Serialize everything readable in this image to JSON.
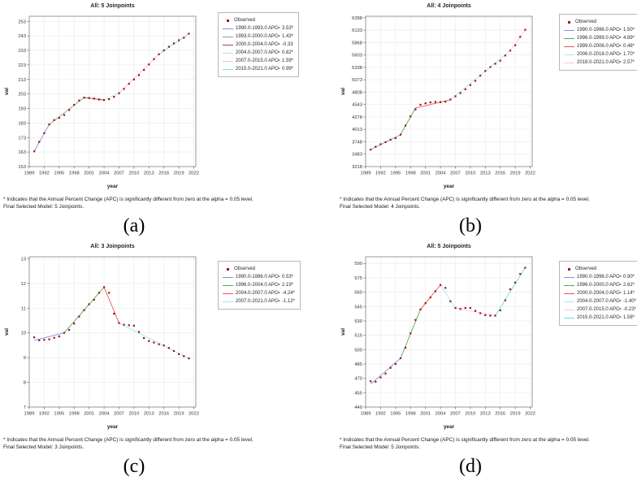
{
  "figure": {
    "background": "#ffffff",
    "grid_color": "#ececec",
    "border_color": "#8f8f8f"
  },
  "chart_data": [
    {
      "type": "line",
      "panel_label": "(a)",
      "title": "All: 5 Joinpoints",
      "xlabel": "year",
      "ylabel": "val",
      "legend_position": "top-right-outside",
      "grid": true,
      "observed_label": "Observed",
      "observed_color": "#9a1515",
      "x_ticks": [
        1989,
        1992,
        1995,
        1998,
        2001,
        2004,
        2007,
        2010,
        2013,
        2016,
        2019,
        2022
      ],
      "y_ticks": [
        153,
        163,
        173,
        183,
        193,
        203,
        213,
        223,
        233,
        243,
        253
      ],
      "xlim": [
        1989,
        2022.4
      ],
      "ylim": [
        153,
        256.5
      ],
      "x": [
        1990,
        1991,
        1992,
        1993,
        1994,
        1995,
        1996,
        1997,
        1998,
        1999,
        2000,
        2001,
        2002,
        2003,
        2004,
        2005,
        2006,
        2007,
        2008,
        2009,
        2010,
        2011,
        2012,
        2013,
        2014,
        2015,
        2016,
        2017,
        2018,
        2019,
        2020,
        2021
      ],
      "values": [
        163.5,
        170,
        176,
        182,
        185,
        186.5,
        188.5,
        192,
        195.5,
        198.5,
        200.5,
        200.2,
        199.8,
        199.2,
        198.8,
        199.4,
        201,
        203.5,
        206.5,
        210,
        213,
        216,
        219.5,
        223.3,
        227,
        230.3,
        233,
        235.5,
        237.8,
        240,
        241.7,
        244.5
      ],
      "segments": [
        {
          "range": "1990.0-1993.0",
          "apc": "3.53*",
          "from": 1990,
          "to": 1993,
          "color": "#8a8ae8"
        },
        {
          "range": "1993.0-2000.0",
          "apc": "1.43*",
          "from": 1993,
          "to": 2000,
          "color": "#8fa88f"
        },
        {
          "range": "2000.0-2004.0",
          "apc": "-0.33",
          "from": 2000,
          "to": 2004,
          "color": "#a34b4b"
        },
        {
          "range": "2004.0-2007.0",
          "apc": "0.82*",
          "from": 2004,
          "to": 2007,
          "color": "#bce3c8"
        },
        {
          "range": "2007.0-2015.0",
          "apc": "1.59*",
          "from": 2007,
          "to": 2015,
          "color": "#f2bcdc"
        },
        {
          "range": "2015.0-2021.0",
          "apc": "0.99*",
          "from": 2015,
          "to": 2021,
          "color": "#7fe2e8"
        }
      ],
      "footnote1": "* Indicates that the Annual Percent Change (APC) is significantly different from zero at the alpha = 0.05 level.",
      "footnote2": "Final Selected Model: 5 Joinpoints."
    },
    {
      "type": "line",
      "panel_label": "(b)",
      "title": "All: 4 Joinpoints",
      "xlabel": "year",
      "ylabel": "val",
      "legend_position": "top-right-outside",
      "grid": true,
      "observed_label": "Observed",
      "observed_color": "#9a1515",
      "x_ticks": [
        1989,
        1992,
        1995,
        1998,
        2001,
        2004,
        2007,
        2010,
        2013,
        2016,
        2019,
        2022
      ],
      "y_ticks": [
        3218,
        3483,
        3748,
        4013,
        4278,
        4543,
        4808,
        5073,
        5338,
        5603,
        5868,
        6133,
        6398
      ],
      "xlim": [
        1989,
        2022.4
      ],
      "ylim": [
        3218,
        6430
      ],
      "x": [
        1990,
        1991,
        1992,
        1993,
        1994,
        1995,
        1996,
        1997,
        1998,
        1999,
        2000,
        2001,
        2002,
        2003,
        2004,
        2005,
        2006,
        2007,
        2008,
        2009,
        2010,
        2011,
        2012,
        2013,
        2014,
        2015,
        2016,
        2017,
        2018,
        2019,
        2020,
        2021
      ],
      "values": [
        3580,
        3640,
        3695,
        3740,
        3790,
        3825,
        3900,
        4095,
        4290,
        4440,
        4540,
        4570,
        4590,
        4600,
        4595,
        4605,
        4650,
        4720,
        4790,
        4870,
        4960,
        5050,
        5160,
        5260,
        5345,
        5415,
        5480,
        5590,
        5695,
        5810,
        5990,
        6140
      ],
      "segments": [
        {
          "range": "1990.0-1996.0",
          "apc": "1.50*",
          "from": 1990,
          "to": 1996,
          "color": "#8a8ae8"
        },
        {
          "range": "1996.0-1999.0",
          "apc": "4.89*",
          "from": 1996,
          "to": 1999,
          "v2": 4470,
          "color": "#57a657"
        },
        {
          "range": "1999.0-2006.0",
          "apc": "0.46*",
          "from": 1999,
          "to": 2006,
          "v1": 4470,
          "v2": 4645,
          "color": "#ef5454"
        },
        {
          "range": "2006.0-2018.0",
          "apc": "1.70*",
          "from": 2006,
          "to": 2018,
          "v1": 4645,
          "color": "#aaeae2"
        },
        {
          "range": "2018.0-2021.0",
          "apc": "2.57*",
          "from": 2018,
          "to": 2021,
          "color": "#f4c4ee"
        }
      ],
      "footnote1": "* Indicates that the Annual Percent Change (APC) is significantly different from zero at the alpha = 0.05 level.",
      "footnote2": "Final Selected Model: 4 Joinpoints."
    },
    {
      "type": "line",
      "panel_label": "(c)",
      "title": "All: 3 Joinpoints",
      "xlabel": "year",
      "ylabel": "val",
      "legend_position": "top-right-outside",
      "grid": true,
      "observed_label": "Observed",
      "observed_color": "#9a1515",
      "x_ticks": [
        1989,
        1992,
        1995,
        1998,
        2001,
        2004,
        2007,
        2010,
        2013,
        2016,
        2019,
        2022
      ],
      "y_ticks": [
        7,
        8,
        9,
        10,
        11,
        12,
        13
      ],
      "xlim": [
        1989,
        2022.4
      ],
      "ylim": [
        7,
        13.08
      ],
      "x": [
        1990,
        1991,
        1992,
        1993,
        1994,
        1995,
        1996,
        1997,
        1998,
        1999,
        2000,
        2001,
        2002,
        2003,
        2004,
        2005,
        2006,
        2007,
        2008,
        2009,
        2010,
        2011,
        2012,
        2013,
        2014,
        2015,
        2016,
        2017,
        2018,
        2019,
        2020,
        2021
      ],
      "values": [
        9.82,
        9.7,
        9.72,
        9.74,
        9.8,
        9.86,
        10,
        10.12,
        10.38,
        10.66,
        10.92,
        11.16,
        11.34,
        11.62,
        11.85,
        11.62,
        10.78,
        10.4,
        10.33,
        10.31,
        10.29,
        10.04,
        9.79,
        9.67,
        9.61,
        9.54,
        9.49,
        9.39,
        9.27,
        9.14,
        9.06,
        8.97
      ],
      "segments": [
        {
          "range": "1990.0-1996.0",
          "apc": "0.53*",
          "from": 1990,
          "to": 1996,
          "v1": 9.7,
          "color": "#8a8ae8"
        },
        {
          "range": "1996.0-2004.0",
          "apc": "2.19*",
          "from": 1996,
          "to": 2004,
          "color": "#57a657"
        },
        {
          "range": "2004.0-2007.0",
          "apc": "-4.24*",
          "from": 2004,
          "to": 2007,
          "color": "#ef5454"
        },
        {
          "range": "2007.0-2021.0",
          "apc": "-1.12*",
          "from": 2007,
          "to": 2021,
          "color": "#a8e8e8"
        }
      ],
      "footnote1": "* Indicates that the Annual Percent Change (APC) is significantly different from zero at the alpha = 0.05 level.",
      "footnote2": "Final Selected Model: 3 Joinpoints."
    },
    {
      "type": "line",
      "panel_label": "(d)",
      "title": "All: 5 Joinpoints",
      "xlabel": "year",
      "ylabel": "val",
      "legend_position": "top-right-outside",
      "grid": true,
      "observed_label": "Observed",
      "observed_color": "#9a1515",
      "x_ticks": [
        1989,
        1992,
        1995,
        1998,
        2001,
        2004,
        2007,
        2010,
        2013,
        2016,
        2019,
        2022
      ],
      "y_ticks": [
        440,
        455,
        470,
        485,
        500,
        515,
        530,
        545,
        560,
        575,
        590
      ],
      "xlim": [
        1989,
        2022.4
      ],
      "ylim": [
        440,
        597
      ],
      "x": [
        1990,
        1991,
        1992,
        1993,
        1994,
        1995,
        1996,
        1997,
        1998,
        1999,
        2000,
        2001,
        2002,
        2003,
        2004,
        2005,
        2006,
        2007,
        2008,
        2009,
        2010,
        2011,
        2012,
        2013,
        2014,
        2015,
        2016,
        2017,
        2018,
        2019,
        2020,
        2021
      ],
      "values": [
        467,
        466.5,
        471,
        475,
        481,
        485,
        491,
        502,
        517,
        531,
        542,
        548.5,
        554.5,
        561,
        567.5,
        564.5,
        550.5,
        543.5,
        542.5,
        543.5,
        543.5,
        540.5,
        538,
        536,
        535.5,
        535.5,
        541,
        551.5,
        563,
        570,
        579,
        585.5
      ],
      "segments": [
        {
          "range": "1990.0-1996.0",
          "apc": "0.90*",
          "from": 1990,
          "to": 1996,
          "v1": 464,
          "color": "#8a8ae8"
        },
        {
          "range": "1996.0-2000.0",
          "apc": "2.62*",
          "from": 1996,
          "to": 2000,
          "color": "#57a657"
        },
        {
          "range": "2000.0-2004.0",
          "apc": "1.14*",
          "from": 2000,
          "to": 2004,
          "color": "#ef5454"
        },
        {
          "range": "2004.0-2007.0",
          "apc": "-1.40*",
          "from": 2004,
          "to": 2007,
          "color": "#aaeae2"
        },
        {
          "range": "2007.0-2015.0",
          "apc": "-0.23*",
          "from": 2007,
          "to": 2015,
          "color": "#f8c4ec"
        },
        {
          "range": "2015.0-2021.0",
          "apc": "1.58*",
          "from": 2015,
          "to": 2021,
          "color": "#62dde8"
        }
      ],
      "footnote1": "* Indicates that the Annual Percent Change (APC) is significantly different from zero at the alpha = 0.05 level.",
      "footnote2": "Final Selected Model: 5 Joinpoints."
    }
  ]
}
